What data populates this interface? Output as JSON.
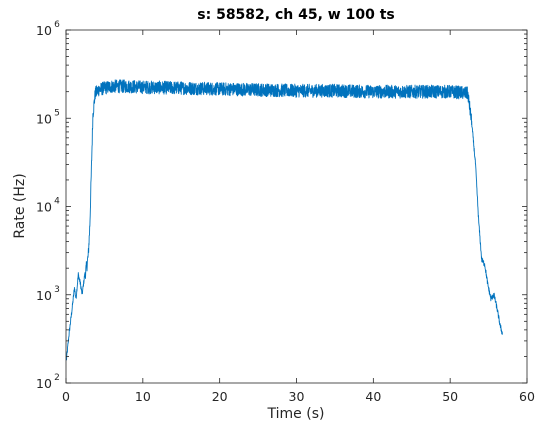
{
  "chart_data": {
    "type": "line",
    "title": "s: 58582, ch 45, w 100 ts",
    "xlabel": "Time (s)",
    "ylabel": "Rate (Hz)",
    "xlim": [
      0,
      60
    ],
    "ylim": [
      100,
      1000000
    ],
    "yscale": "log",
    "grid": false,
    "x_ticks": [
      {
        "value": 0,
        "label": "0"
      },
      {
        "value": 10,
        "label": "10"
      },
      {
        "value": 20,
        "label": "20"
      },
      {
        "value": 30,
        "label": "30"
      },
      {
        "value": 40,
        "label": "40"
      },
      {
        "value": 50,
        "label": "50"
      },
      {
        "value": 60,
        "label": "60"
      }
    ],
    "y_ticks": [
      {
        "value": 100,
        "base": "10",
        "exp": "2"
      },
      {
        "value": 1000,
        "base": "10",
        "exp": "3"
      },
      {
        "value": 10000,
        "base": "10",
        "exp": "4"
      },
      {
        "value": 100000,
        "base": "10",
        "exp": "5"
      },
      {
        "value": 1000000,
        "base": "10",
        "exp": "6"
      }
    ],
    "series": [
      {
        "color": "#0072BD",
        "x": [
          0.05,
          0.4,
          0.8,
          1.1,
          1.3,
          1.6,
          1.9,
          2.1,
          2.4,
          2.7,
          2.9,
          3.1,
          3.3,
          3.5,
          3.8,
          4.2,
          5,
          6,
          8,
          10,
          15,
          20,
          25,
          30,
          35,
          40,
          45,
          50,
          51.5,
          52.3,
          52.8,
          53.3,
          53.7,
          54.1,
          54.5,
          54.9,
          55.3,
          55.7,
          56.1,
          56.5,
          56.8
        ],
        "y": [
          180,
          360,
          700,
          1200,
          900,
          1700,
          1300,
          1000,
          1600,
          2100,
          2800,
          6000,
          25000,
          110000,
          190000,
          210000,
          220000,
          230000,
          230000,
          225000,
          220000,
          215000,
          210000,
          205000,
          205000,
          200000,
          200000,
          200000,
          195000,
          190000,
          90000,
          30000,
          7000,
          2500,
          2200,
          1300,
          900,
          1000,
          700,
          450,
          360
        ],
        "noise_range": [
          2.5,
          52.8
        ]
      }
    ]
  }
}
